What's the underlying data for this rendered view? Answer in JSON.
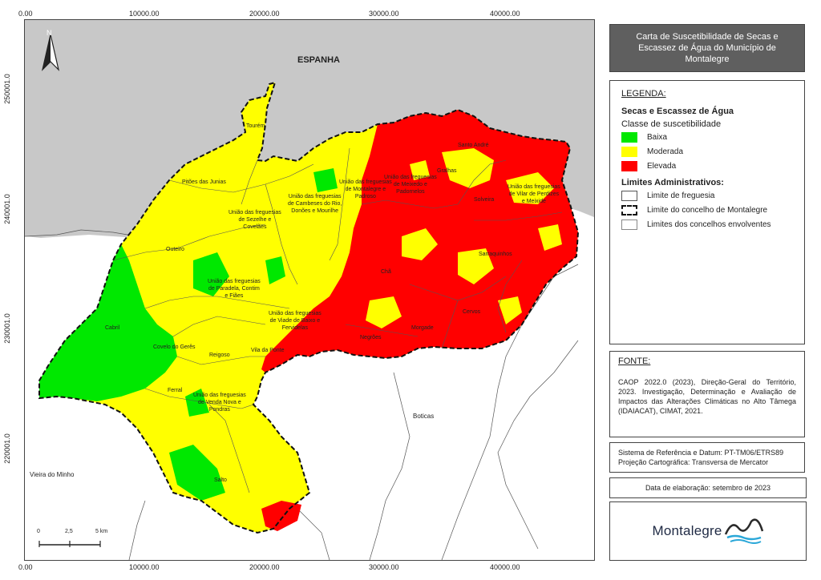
{
  "map_title": "Carta de Suscetibilidade de Secas e Escassez de Água do Município de Montalegre",
  "x_ticks": [
    "0.00",
    "10000.00",
    "20000.00",
    "30000.00",
    "40000.00"
  ],
  "y_ticks": [
    "250001.0",
    "240001.0",
    "230001.0",
    "220001.0"
  ],
  "north_label": "N",
  "country_label": "ESPANHA",
  "place_labels": {
    "tourem": "Tourém",
    "pitoes": "Pitões das Junias",
    "sezelhe": "União das freguesias\nde Sezelhe e\nCovelães",
    "cambeses": "União das freguesias\nde Cambeses do Rio,\nDonões e Mourilhe",
    "montalegre": "União das freguesias\nde Montalegre e\nPadroso",
    "meixedo": "União das freguesias\nde Meixedo e\nPadornelos",
    "outeiro": "Outeiro",
    "paradela": "União das freguesias\nde Paradela, Contim\ne Fiães",
    "viade": "União das freguesias\nde Viade de Baixo e\nFervidelas",
    "cabril": "Cabril",
    "covelo": "Covelo do Gerês",
    "reigoso": "Reigoso",
    "vila_ponte": "Vila da Ponte",
    "ferral": "Ferral",
    "venda_nova": "União das freguesias\nde Venda Nova e\nPondras",
    "salto": "Salto",
    "santo_andre": "Santo André",
    "gralhas": "Gralhas",
    "solveira": "Solveira",
    "vilar_perdizes": "União das freguesias\nde Vilar de Perdizes\ne Meixide",
    "chaos": "Chã",
    "sarraquinhos": "Sarraquinhos",
    "cervos": "Cervos",
    "morgade": "Morgade",
    "negroes": "Negrões",
    "boticas": "Boticas",
    "vieira": "Vieira do Minho"
  },
  "scale": {
    "labels": [
      "0",
      "2,5",
      "5 km"
    ]
  },
  "legend": {
    "heading": "LEGENDA:",
    "group1_title": "Secas e Escassez de Água",
    "group1_subtitle": "Classe de suscetibilidade",
    "classes": [
      {
        "label": "Baixa",
        "color": "#00e800"
      },
      {
        "label": "Moderada",
        "color": "#ffff00"
      },
      {
        "label": "Elevada",
        "color": "#ff0000"
      }
    ],
    "group2_title": "Limites Administrativos:",
    "limits": [
      {
        "label": "Limite de freguesia"
      },
      {
        "label": "Limite do concelho de Montalegre"
      },
      {
        "label": "Limites dos concelhos envolventes"
      }
    ]
  },
  "source": {
    "heading": "FONTE:",
    "text": "CAOP 2022.0 (2023), Direção-Geral do Território, 2023. Investigação, Determinação e Avaliação de Impactos das Alterações Climáticas no Alto Tâmega (IDAIACAT), CIMAT, 2021."
  },
  "reference": {
    "line1": "Sistema de Referência e Datum: PT-TM06/ETRS89",
    "line2": "Projeção Cartográfica: Transversa de Mercator"
  },
  "date": "Data de elaboração: setembro de 2023",
  "logo": "Montalegre",
  "colors": {
    "spain": "#c8c8c8",
    "low": "#00e800",
    "moderate": "#ffff00",
    "high": "#ff0000"
  }
}
